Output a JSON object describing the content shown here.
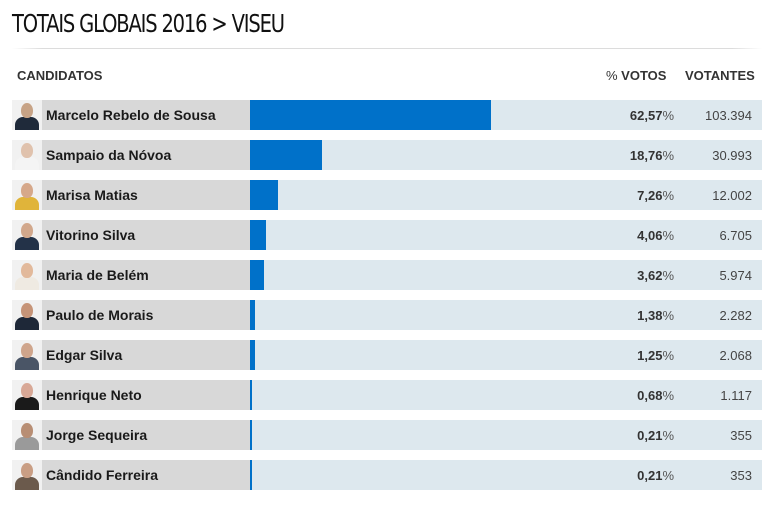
{
  "header": {
    "title": "TOTAIS GLOBAIS 2016 > VISEU"
  },
  "columns": {
    "candidates": "CANDIDATOS",
    "percent": "% VOTOS",
    "voters": "VOTANTES"
  },
  "colors": {
    "bar": "#0071c9",
    "track": "#dde8ee",
    "name_bg": "#d8d8d8"
  },
  "chart_data": {
    "type": "bar",
    "orientation": "horizontal",
    "title": "TOTAIS GLOBAIS 2016 > VISEU",
    "xlabel": "% VOTOS",
    "ylabel": "CANDIDATOS",
    "xlim": [
      0,
      100
    ],
    "categories": [
      "Marcelo Rebelo de Sousa",
      "Sampaio da Nóvoa",
      "Marisa Matias",
      "Vitorino Silva",
      "Maria de Belém",
      "Paulo de Morais",
      "Edgar Silva",
      "Henrique Neto",
      "Jorge Sequeira",
      "Cândido Ferreira"
    ],
    "series": [
      {
        "name": "% VOTOS",
        "values": [
          62.57,
          18.76,
          7.26,
          4.06,
          3.62,
          1.38,
          1.25,
          0.68,
          0.21,
          0.21
        ]
      },
      {
        "name": "VOTANTES",
        "values": [
          103394,
          30993,
          12002,
          6705,
          5974,
          2282,
          2068,
          1117,
          355,
          353
        ]
      }
    ]
  },
  "rows": [
    {
      "name": "Marcelo Rebelo de Sousa",
      "pct": "62,57",
      "pct_value": 62.57,
      "votes": "103.394",
      "skin": "#c7a386",
      "suit": "#1f2a3a"
    },
    {
      "name": "Sampaio da Nóvoa",
      "pct": "18,76",
      "pct_value": 18.76,
      "votes": "30.993",
      "skin": "#e0c2ad",
      "suit": "#f4f4f4"
    },
    {
      "name": "Marisa Matias",
      "pct": "7,26",
      "pct_value": 7.26,
      "votes": "12.002",
      "skin": "#d6a88a",
      "suit": "#e0b43a"
    },
    {
      "name": "Vitorino Silva",
      "pct": "4,06",
      "pct_value": 4.06,
      "votes": "6.705",
      "skin": "#d2a88c",
      "suit": "#233248"
    },
    {
      "name": "Maria de Belém",
      "pct": "3,62",
      "pct_value": 3.62,
      "votes": "5.974",
      "skin": "#e2b99b",
      "suit": "#efeae2"
    },
    {
      "name": "Paulo de Morais",
      "pct": "1,38",
      "pct_value": 1.38,
      "votes": "2.282",
      "skin": "#c69478",
      "suit": "#1e2838"
    },
    {
      "name": "Edgar Silva",
      "pct": "1,25",
      "pct_value": 1.25,
      "votes": "2.068",
      "skin": "#cfa58c",
      "suit": "#4a5566"
    },
    {
      "name": "Henrique Neto",
      "pct": "0,68",
      "pct_value": 0.68,
      "votes": "1.117",
      "skin": "#d8a896",
      "suit": "#1a1a1a"
    },
    {
      "name": "Jorge Sequeira",
      "pct": "0,21",
      "pct_value": 0.21,
      "votes": "355",
      "skin": "#b88e74",
      "suit": "#9a9a9a"
    },
    {
      "name": "Cândido Ferreira",
      "pct": "0,21",
      "pct_value": 0.21,
      "votes": "353",
      "skin": "#c99e84",
      "suit": "#6b5a4c"
    }
  ],
  "pct_symbol": "%"
}
